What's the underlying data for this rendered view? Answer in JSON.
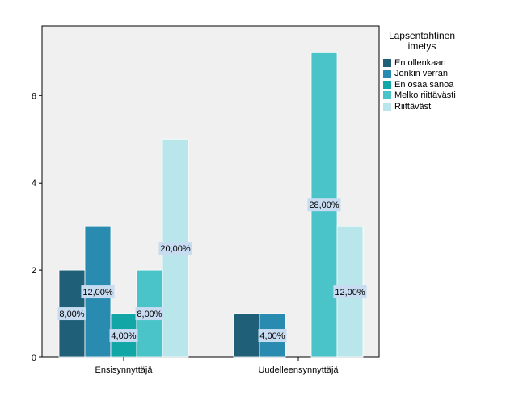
{
  "chart_data": {
    "type": "bar",
    "categories": [
      "Ensisynnyttäjä",
      "Uudelleensynnyttäjä"
    ],
    "series": [
      {
        "name": "En ollenkaan",
        "color": "#1f5f78",
        "values": [
          2,
          1
        ],
        "labels": [
          "8,00%",
          ""
        ]
      },
      {
        "name": "Jonkin verran",
        "color": "#2a8bb0",
        "values": [
          3,
          1
        ],
        "labels": [
          "12,00%",
          "4,00%"
        ]
      },
      {
        "name": "En osaa sanoa",
        "color": "#12a6a6",
        "values": [
          1,
          0
        ],
        "labels": [
          "4,00%",
          ""
        ]
      },
      {
        "name": "Melko riittävästi",
        "color": "#4ac4c8",
        "values": [
          2,
          7
        ],
        "labels": [
          "8,00%",
          "28,00%"
        ]
      },
      {
        "name": "Riittävästi",
        "color": "#b9e6ea",
        "values": [
          5,
          3
        ],
        "labels": [
          "20,00%",
          "12,00%"
        ]
      }
    ],
    "ylim": [
      0,
      7.6
    ],
    "yticks": [
      "0",
      "2",
      "4",
      "6"
    ],
    "legend_title": "Lapsentahtinen imetys",
    "legend_position": "right",
    "plot_background": "#f0f0f0",
    "label_box_color": "#c7dcf0",
    "grid": false
  }
}
